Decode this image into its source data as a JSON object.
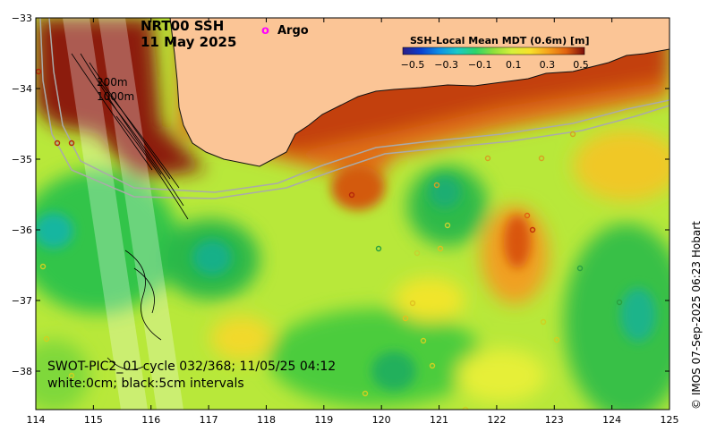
{
  "map": {
    "title_line1": "NRT00 SSH",
    "title_line2": "11 May 2025",
    "argo_marker": "o",
    "argo_label": "Argo",
    "depth_label_200": "200m",
    "depth_label_1000": "1000m",
    "swath_label": "SWOT-PIC2_01 cycle 032/368; 11/05/25 04:12",
    "contour_label": "white:0cm; black:5cm intervals",
    "credit": "© IMOS 07-Sep-2025 06:23 Hobart",
    "colorbar": {
      "title": "SSH-Local Mean MDT (0.6m) [m]",
      "tick_labels": [
        "−0.5",
        "−0.3",
        "−0.1",
        "0.1",
        "0.3",
        "0.5"
      ],
      "colors": [
        "#2a1e86",
        "#0a3fd0",
        "#0d8fe6",
        "#19c9c8",
        "#2cd46a",
        "#37c43a",
        "#8fe03a",
        "#d6f03a",
        "#f7e12a",
        "#f6a21c",
        "#e0620f",
        "#b5260a",
        "#7a0d0a"
      ]
    },
    "x_axis": {
      "labels": [
        "114",
        "115",
        "116",
        "117",
        "118",
        "119",
        "120",
        "121",
        "122",
        "123",
        "124",
        "125"
      ]
    },
    "y_axis": {
      "labels": [
        "−33",
        "−34",
        "−35",
        "−36",
        "−37",
        "−38"
      ]
    },
    "colors": {
      "land": "#fbc596",
      "argo": "#ff00ff",
      "coast": "#111111",
      "isobath": "#aaaaaa"
    }
  }
}
